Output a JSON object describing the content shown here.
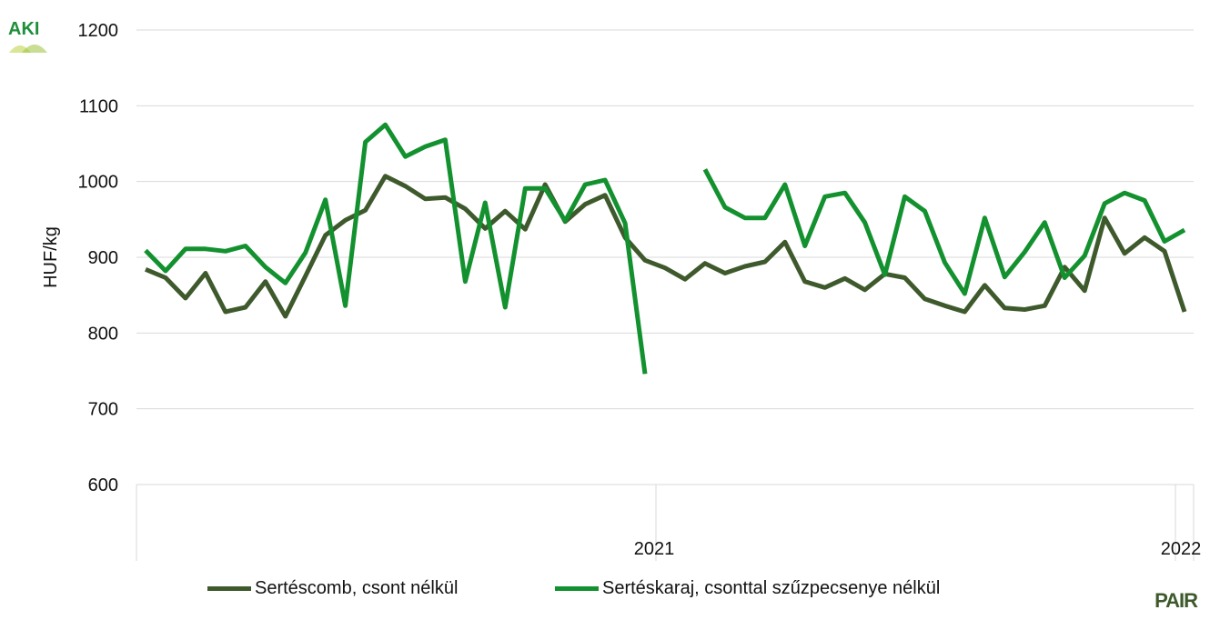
{
  "colors": {
    "series1": "#3e5a2c",
    "series2": "#13912f",
    "grid": "#d9d9d9",
    "axis": "#d9d9d9",
    "text": "#111111"
  },
  "logos": {
    "top_left": "AKI",
    "bottom_right": "PAIR"
  },
  "chart_data": {
    "type": "line",
    "title": "",
    "xlabel": "",
    "ylabel": "HUF/kg",
    "ylim": [
      600,
      1200
    ],
    "yticks": [
      600,
      700,
      800,
      900,
      1000,
      1100,
      1200
    ],
    "grid": "horizontal",
    "legend_position": "bottom",
    "x_tick_labels": [
      {
        "label": "2021",
        "index": 26
      },
      {
        "label": "2022",
        "index": 52
      }
    ],
    "x_count": 53,
    "series": [
      {
        "name": "Sertéscomb, csont nélkül",
        "values": [
          884,
          873,
          846,
          879,
          828,
          834,
          868,
          822,
          875,
          929,
          949,
          962,
          1007,
          994,
          977,
          979,
          964,
          938,
          961,
          937,
          996,
          947,
          970,
          982,
          926,
          896,
          886,
          871,
          892,
          879,
          888,
          894,
          920,
          868,
          860,
          872,
          857,
          878,
          873,
          845,
          836,
          828,
          863,
          833,
          831,
          836,
          887,
          856,
          952,
          905,
          926,
          908,
          828
        ]
      },
      {
        "name": "Sertéskaraj, csonttal szűzpecsenye nélkül",
        "values": [
          909,
          882,
          911,
          911,
          908,
          915,
          887,
          866,
          906,
          976,
          836,
          1052,
          1075,
          1033,
          1046,
          1055,
          868,
          972,
          834,
          991,
          991,
          948,
          996,
          1002,
          945,
          746,
          null,
          null,
          1016,
          966,
          952,
          952,
          996,
          915,
          980,
          985,
          946,
          877,
          980,
          961,
          893,
          852,
          952,
          874,
          907,
          946,
          873,
          902,
          971,
          985,
          975,
          921,
          936
        ]
      }
    ]
  }
}
